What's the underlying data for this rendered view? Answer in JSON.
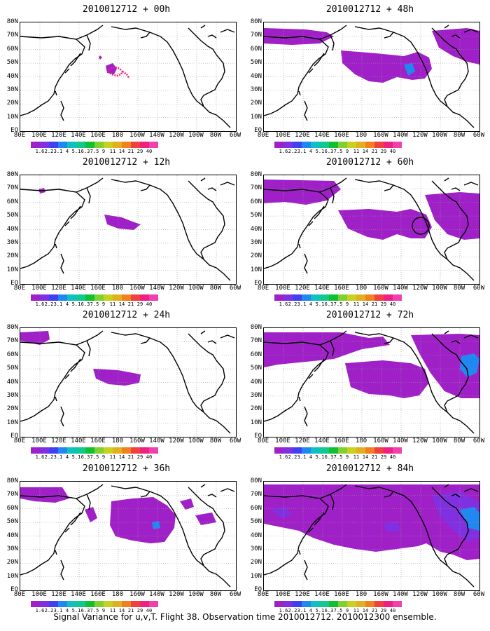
{
  "footer": "Signal Variance for u,v,T. Flight 38. Observation time 2010012712. 2010012300 ensemble.",
  "lat_labels": [
    "80N",
    "70N",
    "60N",
    "50N",
    "40N",
    "30N",
    "20N",
    "10N",
    "EQ"
  ],
  "lon_labels": [
    "80E",
    "100E",
    "120E",
    "140E",
    "160E",
    "180",
    "160W",
    "140W",
    "120W",
    "100W",
    "80W",
    "60W"
  ],
  "colorbar": {
    "labels": [
      "1.6",
      "2.2",
      "3.1",
      "4",
      "5.1",
      "6.3",
      "7.5",
      "9",
      "11",
      "14",
      "21",
      "29",
      "40"
    ],
    "colors": [
      "#a020c8",
      "#8030e0",
      "#4040f0",
      "#2088f0",
      "#10c0c0",
      "#10c890",
      "#10c030",
      "#80d030",
      "#c8d020",
      "#e0b020",
      "#f08020",
      "#f04040",
      "#f02080",
      "#f040b0"
    ]
  },
  "panels": [
    {
      "title": "2010012712 + 00h"
    },
    {
      "title": "2010012712 + 48h"
    },
    {
      "title": "2010012712 + 12h"
    },
    {
      "title": "2010012712 + 60h"
    },
    {
      "title": "2010012712 + 24h"
    },
    {
      "title": "2010012712 + 72h"
    },
    {
      "title": "2010012712 + 36h"
    },
    {
      "title": "2010012712 + 84h"
    }
  ]
}
